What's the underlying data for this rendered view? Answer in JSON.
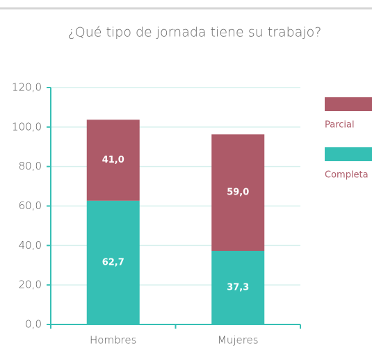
{
  "chart_data": {
    "type": "stacked_bar",
    "title": "¿Qué tipo de jornada tiene su trabajo?",
    "categories": [
      "Hombres",
      "Mujeres"
    ],
    "series": [
      {
        "name": "Completa",
        "color": "#35bfb4",
        "values": [
          62.7,
          37.3
        ],
        "value_labels": [
          "62,7",
          "37,3"
        ]
      },
      {
        "name": "Parcial",
        "color": "#ad5a68",
        "values": [
          41.0,
          59.0
        ],
        "value_labels": [
          "41,0",
          "59,0"
        ]
      }
    ],
    "ylim": [
      0,
      120
    ],
    "yticks": [
      {
        "value": 0,
        "label": "0,0"
      },
      {
        "value": 20,
        "label": "20,0"
      },
      {
        "value": 40,
        "label": "40,0"
      },
      {
        "value": 60,
        "label": "60,0"
      },
      {
        "value": 80,
        "label": "80,0"
      },
      {
        "value": 100,
        "label": "100,0"
      },
      {
        "value": 120,
        "label": "120,0"
      }
    ],
    "grid": true
  }
}
